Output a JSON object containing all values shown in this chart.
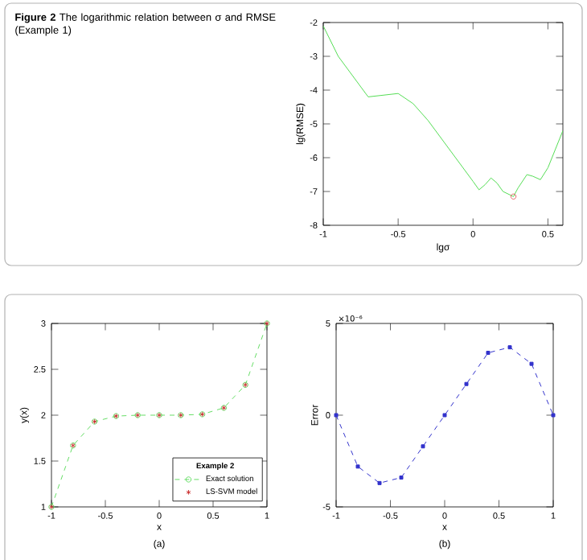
{
  "chart_data": [
    {
      "type": "line",
      "title": "**Figure 2** The logarithmic relation between σ and RMSE (Example 1)",
      "xlabel": "lgσ",
      "ylabel": "lg(RMSE)",
      "xlim": [
        -1,
        0.6
      ],
      "ylim": [
        -8,
        -2
      ],
      "xticks": [
        -1,
        -0.5,
        0,
        0.5
      ],
      "yticks": [
        -8,
        -7,
        -6,
        -5,
        -4,
        -3,
        -2
      ],
      "legend": false,
      "series": [
        {
          "color": "#55dd55",
          "marker": "none",
          "line_style": "solid",
          "x": [
            -1,
            -0.9,
            -0.8,
            -0.7,
            -0.6,
            -0.5,
            -0.4,
            -0.3,
            -0.2,
            -0.1,
            0,
            0.04,
            0.08,
            0.12,
            0.16,
            0.2,
            0.27,
            0.3,
            0.36,
            0.4,
            0.45,
            0.5,
            0.6
          ],
          "values": [
            -2.1,
            -3.0,
            -3.6,
            -4.2,
            -4.15,
            -4.1,
            -4.4,
            -4.9,
            -5.5,
            -6.1,
            -6.7,
            -6.95,
            -6.8,
            -6.6,
            -6.75,
            -7.0,
            -7.15,
            -6.9,
            -6.5,
            -6.55,
            -6.65,
            -6.3,
            -5.2
          ]
        },
        {
          "type": "scatter",
          "color": "#e06060",
          "marker": "circle",
          "x": [
            0.27
          ],
          "values": [
            -7.15
          ]
        }
      ]
    },
    {
      "type": "line",
      "xlabel": "x",
      "ylabel": "y(x)",
      "xlim": [
        -1,
        1
      ],
      "ylim": [
        1,
        3
      ],
      "xticks": [
        -1,
        -0.5,
        0,
        0.5,
        1
      ],
      "yticks": [
        1,
        1.5,
        2,
        2.5,
        3
      ],
      "legend": "bottom right",
      "legend_title": "Example 2",
      "annotations": [
        "(a)"
      ],
      "x": [
        -1,
        -0.8,
        -0.6,
        -0.4,
        -0.2,
        0,
        0.2,
        0.4,
        0.6,
        0.8,
        1
      ],
      "series": [
        {
          "name": "Exact solution",
          "color": "#66dd66",
          "marker": "circle",
          "line_style": "dashed",
          "values": [
            1,
            1.67,
            1.93,
            1.99,
            2.0,
            2.0,
            2.0,
            2.01,
            2.08,
            2.33,
            3.0
          ]
        },
        {
          "type": "scatter",
          "name": "LS-SVM model",
          "color": "#cc3333",
          "marker": "cross",
          "values": [
            1,
            1.67,
            1.93,
            1.99,
            2.0,
            2.0,
            2.0,
            2.01,
            2.08,
            2.33,
            3.0
          ]
        }
      ]
    },
    {
      "type": "line",
      "xlabel": "x",
      "ylabel": "Error",
      "xlim": [
        -1,
        1
      ],
      "ylim": [
        -5,
        5
      ],
      "xticks": [
        -1,
        -0.5,
        0,
        0.5,
        1
      ],
      "yticks": [
        -5,
        0,
        5
      ],
      "legend": false,
      "annotations": [
        "(b)",
        "×10⁻⁶"
      ],
      "x": [
        -1,
        -0.8,
        -0.6,
        -0.4,
        -0.2,
        0,
        0.2,
        0.4,
        0.6,
        0.8,
        1
      ],
      "series": [
        {
          "color": "#3333cc",
          "marker": "square",
          "line_style": "dashed",
          "values": [
            0,
            -2.8,
            -3.7,
            -3.4,
            -1.7,
            0,
            1.7,
            3.4,
            3.7,
            2.8,
            0
          ]
        }
      ]
    }
  ]
}
